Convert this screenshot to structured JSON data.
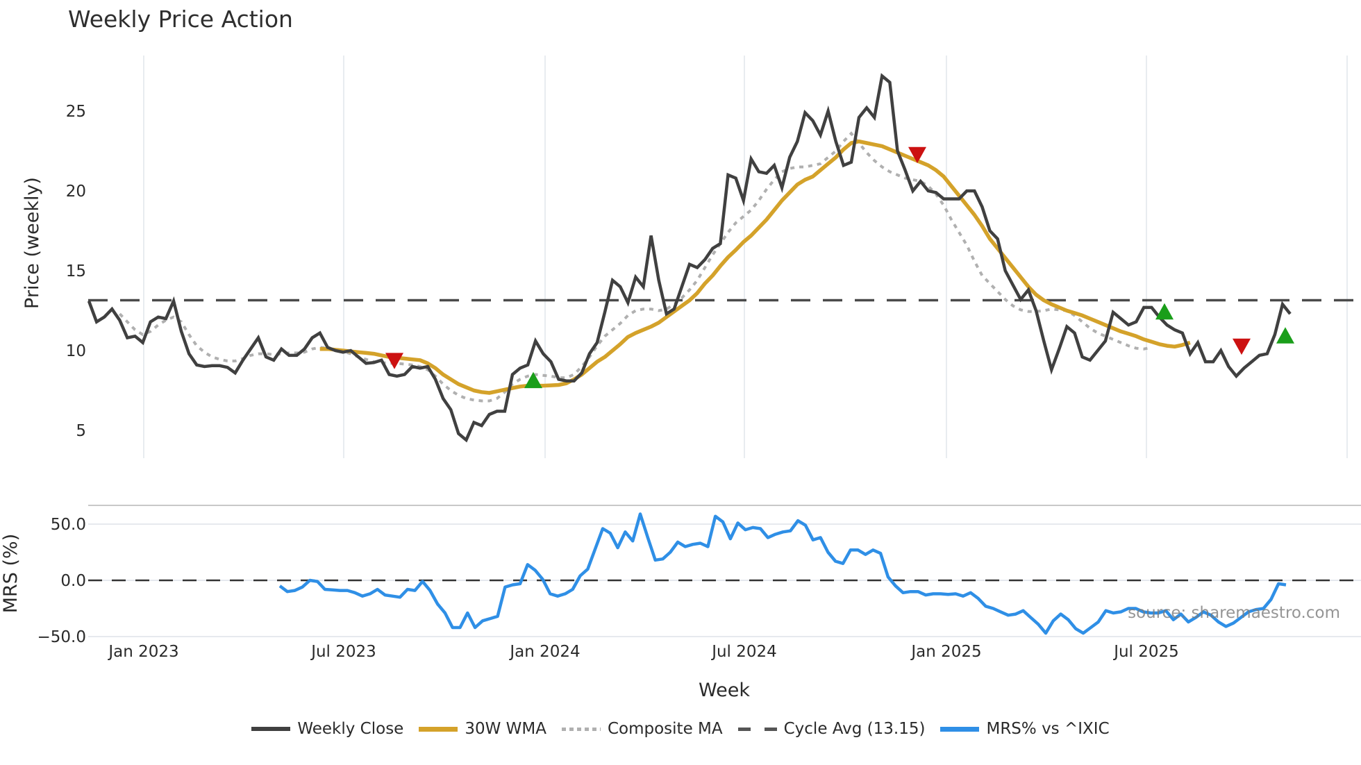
{
  "title": "Weekly Price Action",
  "price_panel": {
    "ylabel": "Price (weekly)",
    "yticks": [
      "25",
      "20",
      "15",
      "10",
      "5"
    ],
    "ytick_values": [
      25,
      20,
      15,
      10,
      5
    ]
  },
  "mrs_panel": {
    "ylabel": "MRS (%)",
    "yticks": [
      "50.0",
      "0.0",
      "−50.0"
    ],
    "ytick_values": [
      50,
      0,
      -50
    ]
  },
  "xaxis": {
    "xlabel": "Week",
    "ticks": [
      "Jan 2023",
      "Jul 2023",
      "Jan 2024",
      "Jul 2024",
      "Jan 2025",
      "Jul 2025"
    ]
  },
  "watermark": "source: sharemaestro.com",
  "legend": [
    {
      "label": "Weekly Close",
      "color": "#404040",
      "style": "solid"
    },
    {
      "label": "30W WMA",
      "color": "#d4a22a",
      "style": "solid"
    },
    {
      "label": "Composite MA",
      "color": "#b0b0b0",
      "style": "dotted"
    },
    {
      "label": "Cycle Avg (13.15)",
      "color": "#555555",
      "style": "dashed"
    },
    {
      "label": "MRS% vs ^IXIC",
      "color": "#2f8fe6",
      "style": "solid"
    }
  ],
  "colors": {
    "close": "#404040",
    "wma": "#d4a22a",
    "composite": "#b0b0b0",
    "cycle": "#4a4a4a",
    "mrs": "#2f8fe6",
    "buy_marker": "#1a9e1a",
    "sell_marker": "#cc1111",
    "grid": "#e8ecf0"
  },
  "chart_data": [
    {
      "type": "line",
      "title": "Weekly Price Action",
      "xlabel": "Week",
      "ylabel": "Price (weekly)",
      "ylim": [
        3,
        28
      ],
      "grid": true,
      "legend_position": "bottom",
      "x_tick_labels": [
        "Jan 2023",
        "Jul 2023",
        "Jan 2024",
        "Jul 2024",
        "Jan 2025",
        "Jul 2025"
      ],
      "x_start": "2022-11",
      "x_end": "2025-11",
      "series": [
        {
          "name": "Weekly Close",
          "values": [
            13.1,
            11.8,
            12.1,
            12.6,
            11.9,
            10.8,
            10.9,
            10.5,
            11.8,
            12.1,
            12.0,
            13.1,
            11.2,
            9.8,
            9.1,
            9.0,
            9.05,
            9.05,
            8.95,
            8.6,
            9.4,
            10.1,
            10.8,
            9.6,
            9.4,
            10.1,
            9.7,
            9.7,
            10.1,
            10.8,
            11.1,
            10.2,
            10.0,
            9.9,
            10.0,
            9.6,
            9.2,
            9.25,
            9.4,
            8.5,
            8.4,
            8.5,
            9.0,
            8.9,
            9.0,
            8.2,
            7.0,
            6.3,
            4.8,
            4.4,
            5.5,
            5.3,
            6.0,
            6.2,
            6.2,
            8.5,
            8.9,
            9.1,
            10.6,
            9.8,
            9.3,
            8.2,
            8.1,
            8.1,
            8.6,
            9.8,
            10.5,
            12.4,
            14.4,
            14.0,
            13.0,
            14.6,
            14.0,
            17.2,
            14.4,
            12.3,
            12.6,
            14.0,
            15.4,
            15.2,
            15.7,
            16.4,
            16.7,
            21.0,
            20.8,
            19.4,
            22.0,
            21.2,
            21.1,
            21.6,
            20.2,
            22.1,
            23.1,
            24.9,
            24.4,
            23.5,
            25.0,
            23.1,
            21.6,
            21.8,
            24.6,
            25.2,
            24.6,
            27.2,
            26.8,
            22.5,
            21.3,
            20.0,
            20.6,
            20.0,
            19.9,
            19.5,
            19.5,
            19.5,
            20.0,
            20.0,
            19.0,
            17.5,
            17.0,
            15.0,
            14.1,
            13.2,
            13.8,
            12.5,
            10.6,
            8.8,
            10.1,
            11.5,
            11.1,
            9.6,
            9.4,
            10.0,
            10.6,
            12.4,
            12.0,
            11.6,
            11.8,
            12.7,
            12.7,
            12.1,
            11.6,
            11.3,
            11.1,
            9.8,
            10.5,
            9.3,
            9.3,
            10.0,
            9.0,
            8.4,
            8.9,
            9.3,
            9.7,
            9.8,
            11.0,
            12.9,
            12.3
          ]
        },
        {
          "name": "30W WMA",
          "values": [
            null,
            null,
            null,
            null,
            null,
            null,
            null,
            null,
            null,
            null,
            null,
            null,
            null,
            null,
            null,
            null,
            null,
            null,
            null,
            null,
            null,
            null,
            null,
            null,
            null,
            null,
            null,
            null,
            null,
            null,
            10.1,
            10.1,
            10.05,
            10.0,
            9.95,
            9.9,
            9.85,
            9.8,
            9.7,
            9.6,
            9.55,
            9.5,
            9.45,
            9.4,
            9.2,
            8.9,
            8.5,
            8.2,
            7.9,
            7.7,
            7.5,
            7.4,
            7.35,
            7.45,
            7.55,
            7.65,
            7.75,
            7.8,
            7.8,
            7.8,
            7.82,
            7.85,
            7.95,
            8.2,
            8.5,
            8.9,
            9.3,
            9.6,
            10.0,
            10.4,
            10.85,
            11.1,
            11.3,
            11.5,
            11.75,
            12.1,
            12.45,
            12.8,
            13.15,
            13.6,
            14.2,
            14.7,
            15.3,
            15.85,
            16.3,
            16.8,
            17.2,
            17.7,
            18.2,
            18.8,
            19.4,
            19.9,
            20.4,
            20.7,
            20.9,
            21.3,
            21.7,
            22.1,
            22.6,
            23.0,
            23.1,
            23.0,
            22.9,
            22.8,
            22.6,
            22.4,
            22.2,
            22.0,
            21.8,
            21.6,
            21.3,
            20.9,
            20.3,
            19.7,
            19.1,
            18.5,
            17.8,
            17.0,
            16.4,
            15.8,
            15.2,
            14.6,
            14.0,
            13.5,
            13.15,
            12.9,
            12.7,
            12.5,
            12.35,
            12.2,
            12.0,
            11.8,
            11.6,
            11.4,
            11.2,
            11.05,
            10.9,
            10.7,
            10.55,
            10.4,
            10.3,
            10.25,
            10.35,
            10.5
          ]
        },
        {
          "name": "Composite MA",
          "values": [
            null,
            null,
            null,
            null,
            12.3,
            11.8,
            11.3,
            11.0,
            11.2,
            11.6,
            11.9,
            12.1,
            11.8,
            11.0,
            10.3,
            9.9,
            9.6,
            9.45,
            9.35,
            9.35,
            9.5,
            9.7,
            9.8,
            9.8,
            9.75,
            9.8,
            9.85,
            9.85,
            9.9,
            10.1,
            10.2,
            10.15,
            10.05,
            9.95,
            9.8,
            9.6,
            9.45,
            9.3,
            9.25,
            9.2,
            9.2,
            9.15,
            9.1,
            9.0,
            8.8,
            8.4,
            7.9,
            7.5,
            7.2,
            7.0,
            6.9,
            6.85,
            6.85,
            7.0,
            7.4,
            7.9,
            8.2,
            8.4,
            8.5,
            8.45,
            8.4,
            8.3,
            8.3,
            8.5,
            9.0,
            9.6,
            10.3,
            10.9,
            11.3,
            11.7,
            12.2,
            12.5,
            12.6,
            12.6,
            12.5,
            12.6,
            12.9,
            13.3,
            13.8,
            14.4,
            15.2,
            16.0,
            16.7,
            17.4,
            18.0,
            18.4,
            18.8,
            19.4,
            20.1,
            20.7,
            21.2,
            21.4,
            21.5,
            21.5,
            21.6,
            21.7,
            22.1,
            22.5,
            23.1,
            23.6,
            23.0,
            22.4,
            21.9,
            21.5,
            21.2,
            21.0,
            20.8,
            20.7,
            20.6,
            20.3,
            19.8,
            19.1,
            18.2,
            17.4,
            16.6,
            15.6,
            14.7,
            14.2,
            13.7,
            13.2,
            12.8,
            12.55,
            12.45,
            12.45,
            12.5,
            12.6,
            12.55,
            12.5,
            12.2,
            11.8,
            11.4,
            11.1,
            10.9,
            10.7,
            10.5,
            10.3,
            10.15,
            10.1,
            10.2
          ]
        },
        {
          "name": "Cycle Avg (13.15)",
          "style": "dashed",
          "values": [
            13.15
          ]
        }
      ],
      "markers": [
        {
          "type": "sell",
          "shape": "triangle-down",
          "color": "#cc1111",
          "week_index": 31,
          "value": 9.4
        },
        {
          "type": "buy",
          "shape": "triangle-up",
          "color": "#1a9e1a",
          "week_index": 57,
          "value": 8.1
        },
        {
          "type": "sell",
          "shape": "triangle-down",
          "color": "#cc1111",
          "week_index": 86,
          "value": 22.3
        },
        {
          "type": "buy",
          "shape": "triangle-up",
          "color": "#1a9e1a",
          "week_index": 111,
          "value": 12.4
        },
        {
          "type": "sell",
          "shape": "triangle-down",
          "color": "#cc1111",
          "week_index": 120,
          "value": 10.3
        },
        {
          "type": "buy",
          "shape": "triangle-up",
          "color": "#1a9e1a",
          "week_index": 124,
          "value": 10.9
        }
      ]
    },
    {
      "type": "line",
      "title": "",
      "xlabel": "Week",
      "ylabel": "MRS (%)",
      "ylim": [
        -55,
        70
      ],
      "grid": true,
      "series": [
        {
          "name": "MRS% vs ^IXIC",
          "values": [
            -5,
            -10,
            -9,
            -6,
            0,
            -1,
            -8,
            -8.5,
            -9,
            -9,
            -11,
            -14,
            -12,
            -8,
            -13,
            -14,
            -15,
            -8,
            -9,
            -1,
            -9,
            -21,
            -29,
            -42,
            -42,
            -29,
            -42,
            -36,
            -34,
            -32,
            -6,
            -4,
            -3,
            14,
            9,
            1,
            -12,
            -14,
            -12,
            -8,
            4,
            10,
            28,
            46,
            42,
            29,
            43,
            35,
            59,
            38,
            18,
            19,
            25,
            34,
            30,
            32,
            33,
            30,
            57,
            52,
            37,
            51,
            45,
            47,
            46,
            38,
            41,
            43,
            44,
            53,
            49,
            36,
            38,
            25,
            17,
            15,
            27,
            27,
            23,
            27,
            24,
            3,
            -5,
            -11,
            -10,
            -10,
            -13,
            -12,
            -12,
            -12.5,
            -12,
            -14,
            -11,
            -16,
            -23,
            -25,
            -28,
            -31,
            -30,
            -27,
            -33,
            -39,
            -47,
            -36,
            -30,
            -35,
            -43,
            -47,
            -42,
            -37,
            -27,
            -29,
            -28,
            -25,
            -25,
            -28,
            -29,
            -29,
            -27,
            -35,
            -30,
            -37,
            -33,
            -28,
            -31,
            -37,
            -41,
            -38,
            -33,
            -28,
            -26,
            -25,
            -17,
            -3,
            -4
          ]
        }
      ],
      "reference_line": {
        "value": 0,
        "style": "dashed"
      }
    }
  ]
}
